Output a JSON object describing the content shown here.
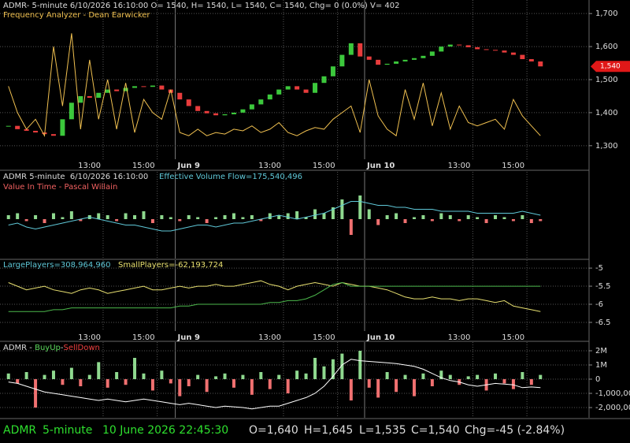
{
  "chart_data": [
    {
      "type": "combo",
      "title": "ADMR- 5-minute 6/10/2026 16:10:00 O= 1540, H= 1540, L= 1540, C= 1540, Chg= 0 (0.0%) V= 402",
      "xlim": [
        0,
        60
      ],
      "xticks": [
        {
          "value": 11,
          "label": "13:00"
        },
        {
          "value": 17,
          "label": "15:00"
        },
        {
          "value": 31,
          "label": "13:00"
        },
        {
          "value": 37,
          "label": "15:00"
        },
        {
          "value": 52,
          "label": "13:00"
        },
        {
          "value": 58,
          "label": "15:00"
        }
      ],
      "day_ticks": [
        {
          "value": 19,
          "label": "Jun 9"
        },
        {
          "value": 40,
          "label": "Jun 10"
        }
      ],
      "ylim": [
        1259,
        1741
      ],
      "yticks": [
        {
          "value": 1700,
          "label": "1,700"
        },
        {
          "value": 1600,
          "label": "1,600"
        },
        {
          "value": 1500,
          "label": "1,500"
        },
        {
          "value": 1400,
          "label": "1,400"
        },
        {
          "value": 1300,
          "label": "1,300"
        }
      ],
      "last": {
        "value": 1540,
        "label": "1,540"
      },
      "series": [
        {
          "type": "candlestick",
          "colors": {
            "up": "#3cc83c",
            "down": "#e83c3c"
          },
          "values": [
            1360,
            1350,
            1345,
            1340,
            1335,
            1330,
            1380,
            1430,
            1450,
            1445,
            1460,
            1470,
            1465,
            1475,
            1480,
            1478,
            1482,
            1470,
            1460,
            1440,
            1420,
            1405,
            1398,
            1392,
            1395,
            1400,
            1410,
            1425,
            1440,
            1455,
            1470,
            1480,
            1470,
            1460,
            1490,
            1510,
            1540,
            1575,
            1610,
            1570,
            1560,
            1545,
            1548,
            1555,
            1560,
            1565,
            1572,
            1585,
            1600,
            1606,
            1604,
            1598,
            1592,
            1590,
            1588,
            1582,
            1575,
            1562,
            1555,
            1540
          ]
        },
        {
          "type": "line",
          "name": "Frequency Analyzer - Dean Earwicker",
          "color": "#f0c050",
          "values": [
            1480,
            1400,
            1350,
            1380,
            1330,
            1600,
            1420,
            1640,
            1350,
            1560,
            1380,
            1500,
            1350,
            1490,
            1340,
            1440,
            1400,
            1380,
            1470,
            1340,
            1330,
            1350,
            1330,
            1340,
            1335,
            1350,
            1345,
            1360,
            1340,
            1350,
            1370,
            1340,
            1330,
            1345,
            1355,
            1350,
            1380,
            1400,
            1420,
            1340,
            1500,
            1390,
            1350,
            1330,
            1470,
            1380,
            1490,
            1360,
            1460,
            1350,
            1420,
            1370,
            1360,
            1370,
            1380,
            1350,
            1440,
            1390,
            1360,
            1330
          ]
        }
      ]
    },
    {
      "type": "combo",
      "title": "ADMR 5-minute  6/10/2026 16:10:00",
      "ylim": [
        -20,
        24
      ],
      "series": [
        {
          "type": "bar",
          "name": "Value In Time - Pascal Willain",
          "colors": {
            "up": "#8fd98f",
            "down": "#f07070"
          },
          "values": [
            2,
            3,
            -1,
            2,
            -2,
            3,
            1,
            4,
            -1,
            2,
            3,
            2,
            -1,
            3,
            2,
            4,
            -2,
            2,
            1,
            -1,
            2,
            1,
            -2,
            1,
            2,
            3,
            1,
            2,
            -1,
            3,
            2,
            3,
            4,
            1,
            5,
            3,
            6,
            10,
            -8,
            12,
            5,
            -3,
            2,
            3,
            -2,
            1,
            2,
            -1,
            3,
            2,
            -1,
            2,
            1,
            -2,
            2,
            1,
            -1,
            2,
            -2,
            -1
          ]
        },
        {
          "type": "line",
          "name": "Effective Volume Flow=175,540,496",
          "color": "#5fc8d8",
          "values": [
            -3,
            -2,
            -4,
            -5,
            -4,
            -3,
            -2,
            -1,
            0,
            1,
            0,
            -1,
            -2,
            -3,
            -3,
            -4,
            -5,
            -6,
            -6,
            -5,
            -4,
            -3,
            -3,
            -4,
            -3,
            -2,
            -2,
            -1,
            0,
            1,
            2,
            1,
            0,
            1,
            2,
            3,
            5,
            7,
            9,
            9,
            8,
            7,
            7,
            6,
            6,
            5,
            5,
            5,
            4,
            4,
            4,
            4,
            3,
            3,
            3,
            3,
            3,
            4,
            3,
            2
          ]
        }
      ]
    },
    {
      "type": "combo",
      "xlim": [
        0,
        60
      ],
      "xticks": [
        {
          "value": 11,
          "label": "13:00"
        },
        {
          "value": 17,
          "label": "15:00"
        },
        {
          "value": 31,
          "label": "13:00"
        },
        {
          "value": 37,
          "label": "15:00"
        },
        {
          "value": 52,
          "label": "13:00"
        },
        {
          "value": 58,
          "label": "15:00"
        }
      ],
      "day_ticks": [
        {
          "value": 19,
          "label": "Jun 9"
        },
        {
          "value": 40,
          "label": "Jun 10"
        }
      ],
      "ylim": [
        -6.74,
        -4.78
      ],
      "yticks": [
        -5,
        -5.5,
        -6,
        -6.5
      ],
      "series": [
        {
          "type": "line",
          "name": "LargePlayers=308,964,960",
          "color": "#e8e070",
          "values": [
            -5.4,
            -5.5,
            -5.6,
            -5.55,
            -5.5,
            -5.6,
            -5.65,
            -5.7,
            -5.6,
            -5.55,
            -5.6,
            -5.7,
            -5.65,
            -5.6,
            -5.55,
            -5.5,
            -5.6,
            -5.6,
            -5.55,
            -5.5,
            -5.55,
            -5.5,
            -5.5,
            -5.45,
            -5.5,
            -5.5,
            -5.45,
            -5.4,
            -5.35,
            -5.45,
            -5.5,
            -5.6,
            -5.5,
            -5.45,
            -5.4,
            -5.45,
            -5.5,
            -5.4,
            -5.45,
            -5.5,
            -5.5,
            -5.55,
            -5.6,
            -5.7,
            -5.8,
            -5.85,
            -5.85,
            -5.8,
            -5.85,
            -5.85,
            -5.9,
            -5.85,
            -5.85,
            -5.9,
            -5.95,
            -5.9,
            -6.05,
            -6.1,
            -6.15,
            -6.2
          ]
        },
        {
          "type": "line",
          "name": "SmallPlayers=-62,193,724",
          "color": "#4cb84c",
          "values": [
            -6.2,
            -6.2,
            -6.2,
            -6.2,
            -6.2,
            -6.15,
            -6.15,
            -6.1,
            -6.1,
            -6.1,
            -6.1,
            -6.1,
            -6.1,
            -6.1,
            -6.1,
            -6.1,
            -6.1,
            -6.1,
            -6.1,
            -6.05,
            -6.05,
            -6.0,
            -6.0,
            -6.0,
            -6.0,
            -6.0,
            -6.0,
            -6.0,
            -6.0,
            -5.95,
            -5.95,
            -5.9,
            -5.9,
            -5.85,
            -5.75,
            -5.6,
            -5.45,
            -5.4,
            -5.5,
            -5.5,
            -5.5,
            -5.5,
            -5.5,
            -5.5,
            -5.5,
            -5.5,
            -5.5,
            -5.5,
            -5.5,
            -5.5,
            -5.5,
            -5.5,
            -5.5,
            -5.5,
            -5.5,
            -5.5,
            -5.5,
            -5.5,
            -5.5,
            -5.5
          ]
        }
      ]
    },
    {
      "type": "combo",
      "title": "ADMR - ",
      "legend_separator": "-",
      "ylim": [
        -2720000,
        2610000
      ],
      "yticks": [
        {
          "value": 2000000,
          "label": "2M"
        },
        {
          "value": 1000000,
          "label": "1M"
        },
        0,
        {
          "value": -1000000,
          "label": "-1,000,000"
        },
        {
          "value": -2000000,
          "label": "-2,000,000"
        }
      ],
      "series": [
        {
          "type": "bar",
          "name": "BuyUp",
          "color": "#8fd98f",
          "values": [
            400000,
            null,
            500000,
            null,
            300000,
            600000,
            null,
            800000,
            null,
            300000,
            1200000,
            null,
            500000,
            null,
            1500000,
            400000,
            null,
            600000,
            null,
            null,
            null,
            300000,
            null,
            200000,
            400000,
            null,
            300000,
            null,
            500000,
            null,
            300000,
            null,
            600000,
            400000,
            1500000,
            900000,
            1400000,
            1800000,
            null,
            2000000,
            null,
            null,
            500000,
            null,
            300000,
            null,
            400000,
            null,
            600000,
            300000,
            null,
            200000,
            300000,
            null,
            400000,
            null,
            null,
            500000,
            null,
            300000
          ]
        },
        {
          "type": "bar",
          "name": "SellDown",
          "color": "#f07070",
          "values": [
            null,
            -300000,
            null,
            -2000000,
            null,
            null,
            -400000,
            null,
            -500000,
            null,
            null,
            -600000,
            null,
            -400000,
            null,
            null,
            -800000,
            null,
            -300000,
            -1200000,
            -500000,
            null,
            -900000,
            null,
            null,
            -600000,
            null,
            -1100000,
            null,
            -700000,
            null,
            -1000000,
            null,
            null,
            null,
            null,
            null,
            null,
            -1500000,
            null,
            -600000,
            -1300000,
            null,
            -900000,
            null,
            -1200000,
            null,
            -500000,
            null,
            null,
            -400000,
            null,
            null,
            -800000,
            null,
            -300000,
            -700000,
            null,
            -400000,
            null
          ]
        },
        {
          "type": "line",
          "color": "#ffffff",
          "values": [
            -200000,
            -300000,
            -500000,
            -700000,
            -900000,
            -1000000,
            -1100000,
            -1200000,
            -1300000,
            -1400000,
            -1500000,
            -1400000,
            -1500000,
            -1600000,
            -1500000,
            -1400000,
            -1500000,
            -1600000,
            -1700000,
            -1800000,
            -1700000,
            -1800000,
            -1900000,
            -2000000,
            -1900000,
            -1950000,
            -2000000,
            -2100000,
            -2000000,
            -1900000,
            -1900000,
            -1700000,
            -1500000,
            -1300000,
            -1000000,
            -500000,
            200000,
            1000000,
            1400000,
            1300000,
            1250000,
            1200000,
            1150000,
            1100000,
            1000000,
            900000,
            700000,
            400000,
            100000,
            -100000,
            -200000,
            -400000,
            -500000,
            -400000,
            -300000,
            -350000,
            -400000,
            -600000,
            -550000,
            -600000
          ]
        }
      ]
    }
  ],
  "status": {
    "symbol": "ADMR",
    "interval": "5-minute",
    "datetime": "10 June 2026 22:45:30",
    "open": "O=1,640",
    "high": "H=1,645",
    "low": "L=1,535",
    "close": "C=1,540",
    "change": "Chg=-45 (-2.84%)"
  }
}
